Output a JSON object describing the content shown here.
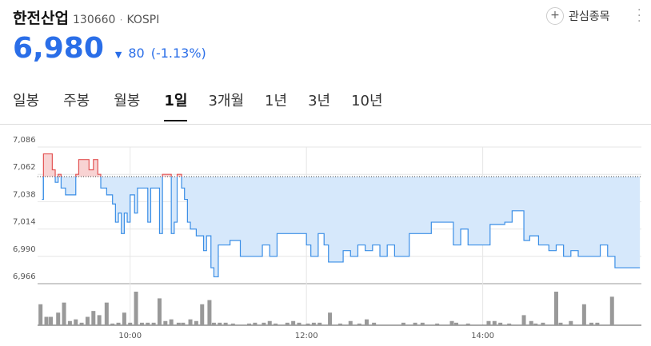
{
  "header": {
    "name": "한전산업",
    "code": "130660",
    "market": "KOSPI",
    "watch": "관심종목",
    "price": "6,980",
    "change": "80",
    "change_pct": "(-1.13%)"
  },
  "tabs": {
    "items": [
      "일봉",
      "주봉",
      "월봉",
      "1일",
      "3개월",
      "1년",
      "3년",
      "10년"
    ],
    "selected": 3
  },
  "chart_data": {
    "type": "line",
    "color": "#3a8ee6",
    "up_color": "#e35454",
    "fill": "#d6e8fb",
    "up_fill": "#f8d3d3",
    "baseline": 7060,
    "x": [
      540,
      541,
      545,
      547,
      549,
      551,
      553,
      556,
      560,
      563,
      565,
      570,
      572,
      575,
      578,
      580,
      584,
      588,
      590,
      592,
      594,
      596,
      598,
      600,
      603,
      605,
      610,
      612,
      614,
      618,
      620,
      622,
      626,
      628,
      630,
      632,
      635,
      637,
      639,
      641,
      645,
      650,
      652,
      655,
      657,
      660,
      665,
      668,
      675,
      685,
      690,
      695,
      700,
      715,
      720,
      723,
      728,
      732,
      735,
      740,
      745,
      750,
      755,
      760,
      765,
      770,
      775,
      780,
      790,
      800,
      805,
      815,
      820,
      825,
      830,
      840,
      845,
      850,
      855,
      860,
      865,
      868,
      872,
      878,
      885,
      890,
      895,
      900,
      905,
      915,
      920,
      925,
      930,
      947
    ],
    "values": [
      7040,
      7080,
      7080,
      7066,
      7055,
      7062,
      7050,
      7044,
      7044,
      7062,
      7075,
      7075,
      7066,
      7075,
      7062,
      7050,
      7044,
      7036,
      7020,
      7028,
      7010,
      7028,
      7020,
      7044,
      7028,
      7050,
      7050,
      7020,
      7050,
      7050,
      7010,
      7062,
      7062,
      7010,
      7020,
      7062,
      7050,
      7040,
      7020,
      7014,
      7008,
      6995,
      7008,
      6980,
      6972,
      7000,
      7000,
      7004,
      6990,
      6990,
      7000,
      6990,
      7010,
      7010,
      7000,
      6990,
      7010,
      7000,
      6985,
      6985,
      6995,
      6990,
      7000,
      6995,
      7000,
      6990,
      7000,
      6990,
      7010,
      7010,
      7020,
      7020,
      7000,
      7014,
      7000,
      7000,
      7018,
      7018,
      7020,
      7030,
      7030,
      7004,
      7008,
      7000,
      6995,
      7000,
      6990,
      6995,
      6990,
      6990,
      7000,
      6990,
      6980,
      6980
    ],
    "xlim": [
      537,
      948
    ],
    "xticks": [
      {
        "value": 600,
        "label": "10:00"
      },
      {
        "value": 720,
        "label": "12:00"
      },
      {
        "value": 840,
        "label": "14:00"
      }
    ],
    "ylim": [
      6966,
      7086
    ],
    "yticks": [
      {
        "value": 6966,
        "label": "6,966"
      },
      {
        "value": 6990,
        "label": "6,990"
      },
      {
        "value": 7014,
        "label": "7,014"
      },
      {
        "value": 7038,
        "label": "7,038"
      },
      {
        "value": 7062,
        "label": "7,062"
      },
      {
        "value": 7086,
        "label": "7,086"
      }
    ],
    "volume": {
      "color": "#999999",
      "ylim": [
        0,
        40
      ],
      "x": [
        539,
        543,
        546,
        551,
        555,
        559,
        563,
        567,
        571,
        575,
        579,
        584,
        588,
        592,
        596,
        600,
        604,
        608,
        612,
        616,
        620,
        624,
        628,
        633,
        636,
        641,
        645,
        649,
        654,
        657,
        661,
        665,
        670,
        681,
        685,
        691,
        695,
        699,
        707,
        711,
        715,
        721,
        725,
        729,
        736,
        743,
        750,
        756,
        761,
        766,
        786,
        794,
        799,
        809,
        819,
        822,
        830,
        844,
        848,
        852,
        858,
        868,
        873,
        876,
        881,
        890,
        893,
        900,
        909,
        914,
        918,
        928
      ],
      "values": [
        25,
        10,
        10,
        15,
        27,
        5,
        7,
        3,
        10,
        17,
        12,
        27,
        2,
        3,
        15,
        3,
        40,
        3,
        3,
        3,
        32,
        5,
        7,
        3,
        3,
        7,
        5,
        25,
        30,
        3,
        3,
        3,
        2,
        2,
        3,
        3,
        5,
        2,
        3,
        5,
        3,
        2,
        3,
        3,
        15,
        2,
        5,
        2,
        7,
        3,
        3,
        3,
        3,
        2,
        5,
        3,
        2,
        5,
        5,
        3,
        2,
        12,
        5,
        2,
        3,
        40,
        3,
        5,
        25,
        3,
        3,
        34
      ]
    }
  }
}
